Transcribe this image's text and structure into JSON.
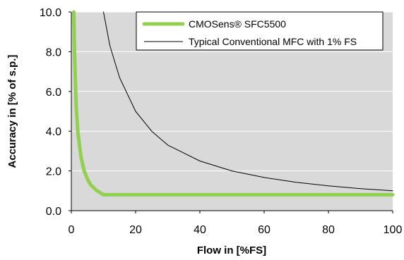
{
  "chart_data": {
    "type": "line",
    "xlabel": "Flow in [%FS]",
    "ylabel": "Accuracy in [% of s.p.]",
    "xlim": [
      0,
      100
    ],
    "ylim": [
      0,
      10
    ],
    "x_ticks": [
      "0",
      "20",
      "40",
      "60",
      "80",
      "100"
    ],
    "y_ticks": [
      "0.0",
      "2.0",
      "4.0",
      "6.0",
      "8.0",
      "10.0"
    ],
    "grid": "horizontal",
    "legend_position": "top-right",
    "plot_background": "#d9d9d9",
    "series": [
      {
        "name": "CMOSens® SFC5500",
        "color": "#92d050",
        "x": [
          0.8,
          1,
          1.5,
          2,
          3,
          4,
          5,
          6,
          8,
          10,
          15,
          20,
          40,
          60,
          80,
          100
        ],
        "y": [
          10.0,
          8.0,
          5.3,
          4.0,
          2.7,
          2.0,
          1.6,
          1.3,
          1.0,
          0.8,
          0.8,
          0.8,
          0.8,
          0.8,
          0.8,
          0.8
        ]
      },
      {
        "name": "Typical Conventional MFC with 1% FS",
        "color": "#000000",
        "x": [
          10,
          12,
          15,
          20,
          25,
          30,
          35,
          40,
          50,
          60,
          70,
          80,
          90,
          100
        ],
        "y": [
          10.0,
          8.3,
          6.7,
          5.0,
          4.0,
          3.3,
          2.9,
          2.5,
          2.0,
          1.67,
          1.43,
          1.25,
          1.11,
          1.0
        ]
      }
    ]
  }
}
